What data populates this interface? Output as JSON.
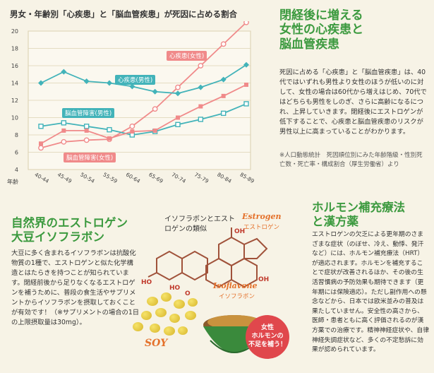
{
  "chart_data": {
    "type": "line",
    "title": "男女・年齢別「心疾患」と「脳血管疾患」が死因に占める割合",
    "xlabel": "年齢",
    "ylim": [
      4,
      20
    ],
    "yticks": [
      4,
      6,
      8,
      10,
      12,
      14,
      16,
      18,
      20
    ],
    "categories": [
      "40-44",
      "45-49",
      "50-54",
      "55-59",
      "60-64",
      "65-69",
      "70-74",
      "75-79",
      "80-84",
      "85-89"
    ],
    "series": [
      {
        "name": "心疾患(女性)",
        "color": "#f08a8a",
        "marker": "circle-open",
        "values": [
          6.5,
          7.2,
          7.4,
          7.5,
          9.0,
          11.0,
          13.5,
          16.0,
          18.5,
          21.0
        ]
      },
      {
        "name": "心疾患(男性)",
        "color": "#42b3b9",
        "marker": "diamond-filled",
        "values": [
          14.0,
          15.3,
          14.2,
          14.0,
          13.6,
          13.0,
          12.8,
          13.5,
          14.4,
          16.1
        ]
      },
      {
        "name": "脳血管障害(男性)",
        "color": "#42b3b9",
        "marker": "square-open",
        "values": [
          9.0,
          9.4,
          9.0,
          8.6,
          8.0,
          8.4,
          9.2,
          9.8,
          10.5,
          11.6
        ]
      },
      {
        "name": "脳血管障害(女性)",
        "color": "#f08a8a",
        "marker": "square-filled",
        "values": [
          7.0,
          8.5,
          8.5,
          7.6,
          8.4,
          8.5,
          10.0,
          11.3,
          12.5,
          13.8
        ]
      }
    ]
  },
  "section1": {
    "title_lines": [
      "閉経後に増える",
      "女性の心疾患と",
      "脳血管疾患"
    ],
    "body": "死因に占める「心疾患」と「脳血管疾患」は、40代ではいずれも男性より女性のほうが低いのに対して、女性の場合は60代から増えはじめ、70代ではどちらも男性をしのぎ、さらに高齢になるにつれ、上昇していきます。閉経後にエストロゲンが低下することで、心疾患と脳血管疾患のリスクが男性以上に高まっていることがわかります。",
    "note": "※人口動態統計　死因順位別にみた年齢階級・性別死亡数・死亡率・構成割合（厚生労働省）より"
  },
  "section2": {
    "title_lines": [
      "自然界のエストロゲン",
      "大豆イソフラボン"
    ],
    "body": "大豆に多く含まれるイソフラボンは抗酸化物質の1種で、エストロゲンと似た化学構造とはたらきを持つことが知られています。閉経前後から足りなくなるエストロゲンを補うために、普段の食生活やサプリメントからイソフラボンを摂取しておくことが有効です！（※サプリメントの場合の1日の上限摂取量は30mg）。",
    "diagram_caption": "イソフラボンとエストロゲンの類似",
    "estrogen_en": "Estrogen",
    "estrogen_jp": "エストロゲン",
    "isoflavone_en": "Isoflavone",
    "isoflavone_jp": "イソフラボン",
    "soy_label": "SOY",
    "badge_lines": [
      "女性",
      "ホルモンの",
      "不足を補う！"
    ]
  },
  "section3": {
    "title_lines": [
      "ホルモン補充療法",
      "と漢方薬"
    ],
    "body": "エストロゲンの欠乏による更年期のさまざまな症状（のぼせ、冷え、動悸、発汗など）には、ホルモン補充療法（HRT）が適応されます。ホルモンを補充することで症状が改善されるほか、その後の生活習慣病の予防効果も期待できます（更年期には保険適応）。ただし副作用への懸念などから、日本では欧米並みの普及は果たしていません。安全性の高さから、医師・患者ともに高く評価されるのが漢方薬での治療です。精神神経症状や、自律神経失調症状など、多くの不定愁訴に効果が認められています。"
  },
  "colors": {
    "green": "#3c9a3f",
    "pink": "#f08a8a",
    "teal": "#42b3b9",
    "orange": "#e4712b"
  }
}
